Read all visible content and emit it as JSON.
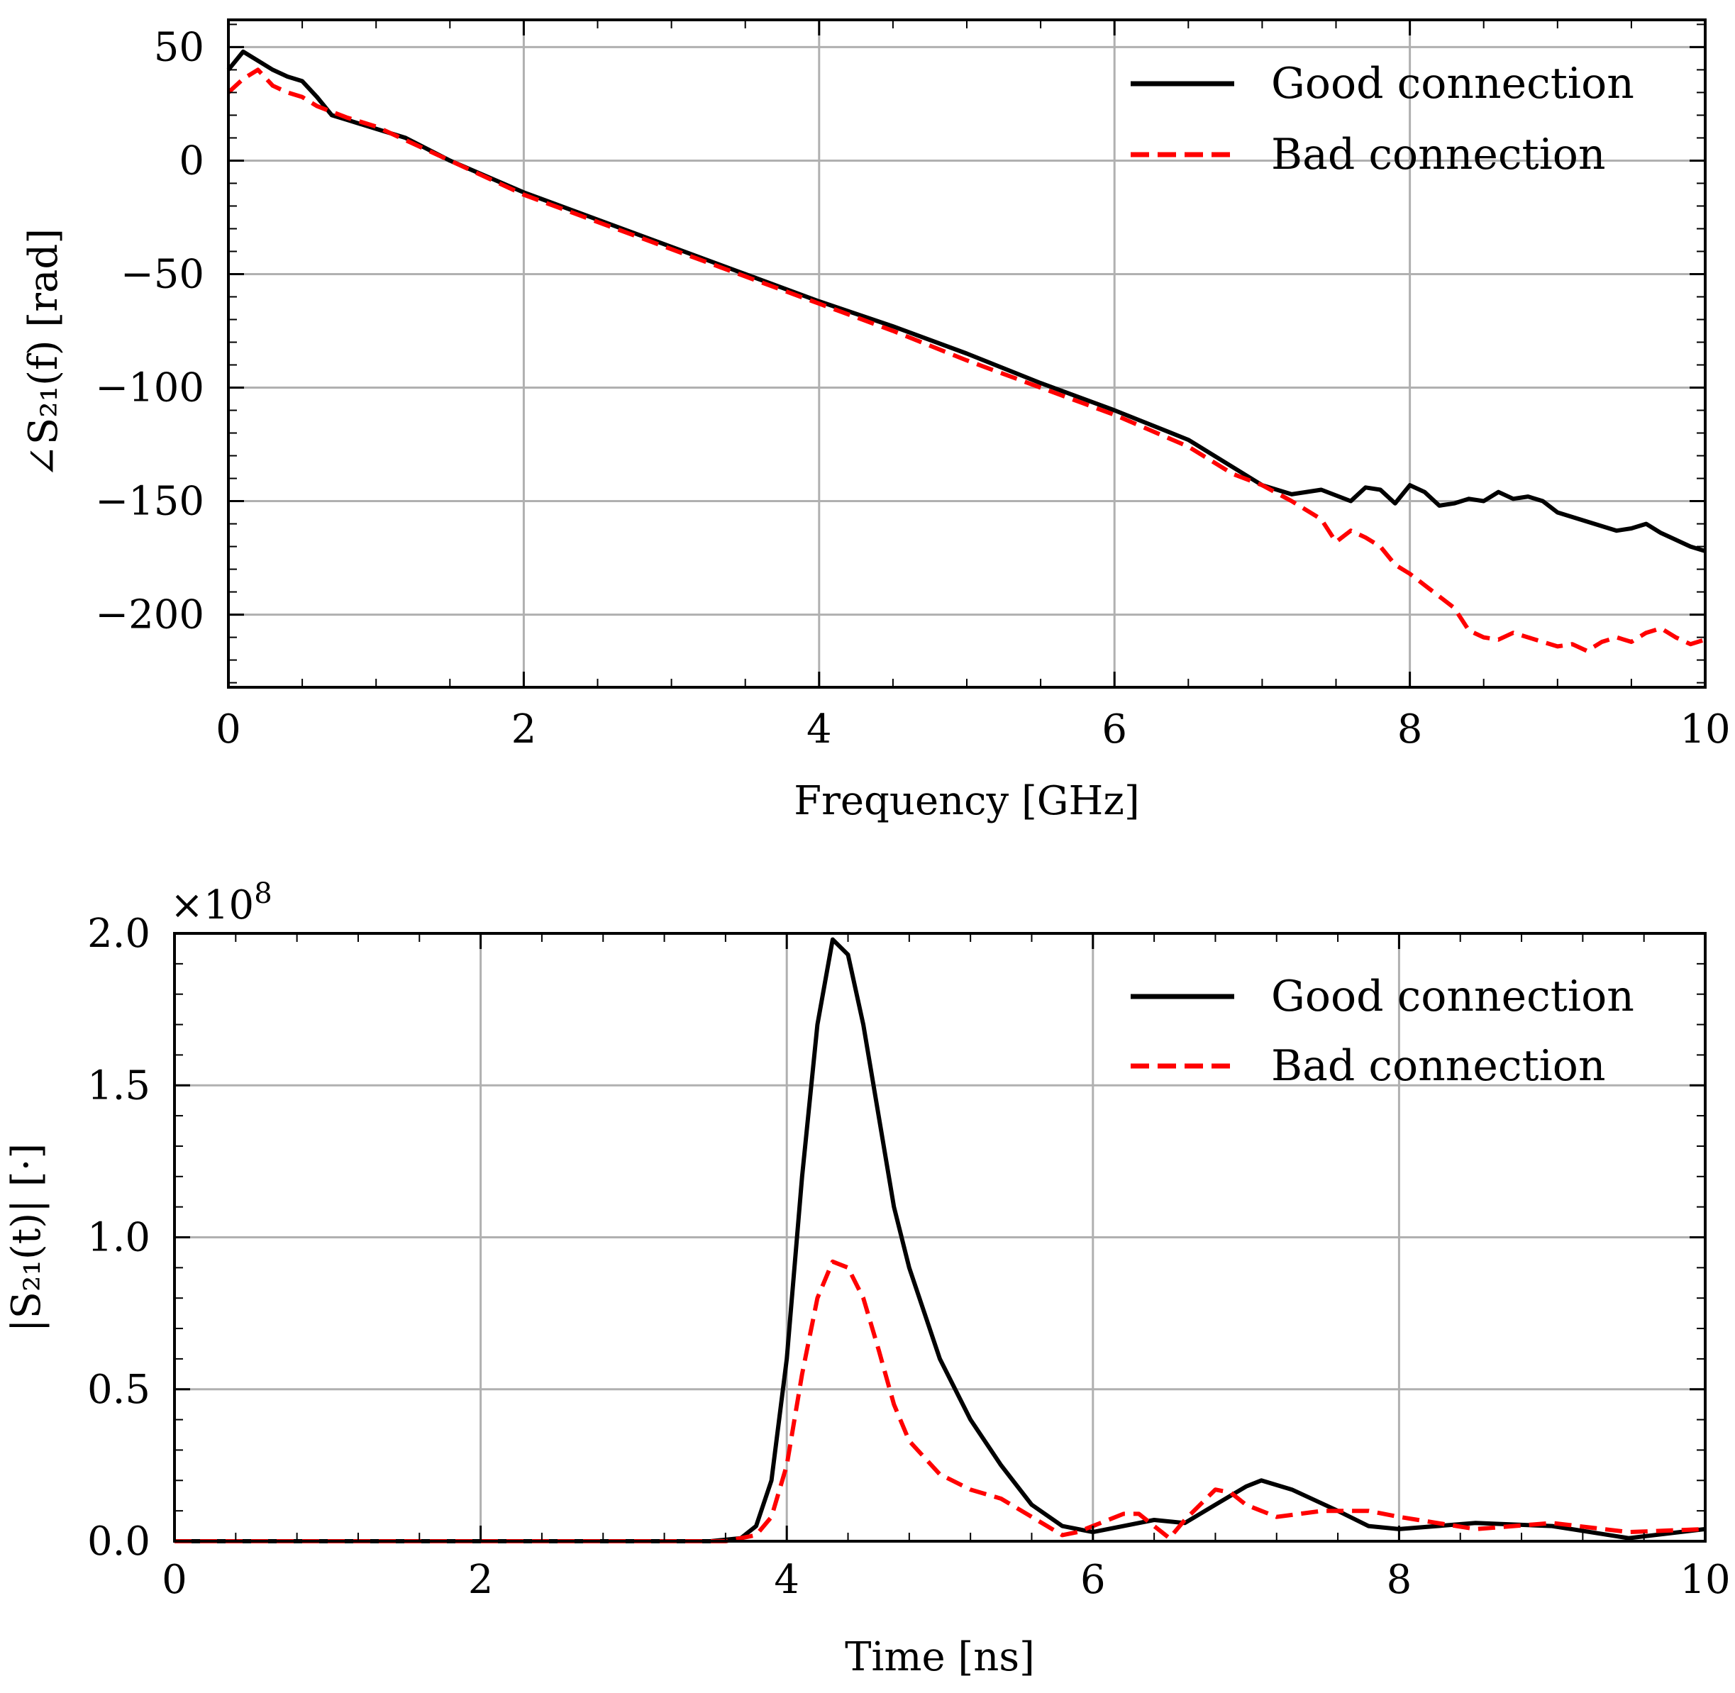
{
  "figure": {
    "colors": {
      "good": "#000000",
      "bad": "#ff0000",
      "grid": "#b0b0b0"
    }
  },
  "chart_data": [
    {
      "id": "phase",
      "type": "line",
      "xlabel": "Frequency [GHz]",
      "ylabel": "∠S₂₁(f) [rad]",
      "xlim": [
        0,
        10
      ],
      "ylim": [
        -232,
        62
      ],
      "xticks": [
        0,
        2,
        4,
        6,
        8,
        10
      ],
      "xtick_labels": [
        "0",
        "2",
        "4",
        "6",
        "8",
        "10"
      ],
      "yticks": [
        50,
        0,
        -50,
        -100,
        -150,
        -200
      ],
      "ytick_labels": [
        "50",
        "0",
        "−50",
        "−100",
        "−150",
        "−200"
      ],
      "grid": true,
      "legend": "top-right",
      "series": [
        {
          "name": "Good connection",
          "color": "#000000",
          "style": "solid",
          "x": [
            0,
            0.1,
            0.2,
            0.3,
            0.4,
            0.5,
            0.6,
            0.7,
            0.8,
            1.0,
            1.2,
            1.5,
            2.0,
            2.5,
            3.0,
            3.5,
            4.0,
            4.5,
            5.0,
            5.5,
            6.0,
            6.5,
            7.0,
            7.2,
            7.4,
            7.6,
            7.7,
            7.8,
            7.9,
            8.0,
            8.1,
            8.2,
            8.3,
            8.4,
            8.5,
            8.6,
            8.7,
            8.8,
            8.9,
            9.0,
            9.2,
            9.4,
            9.5,
            9.6,
            9.7,
            9.8,
            9.9,
            10.0
          ],
          "y": [
            40,
            48,
            44,
            40,
            37,
            35,
            28,
            20,
            18,
            14,
            10,
            0,
            -14,
            -26,
            -38,
            -50,
            -62,
            -73,
            -85,
            -98,
            -110,
            -123,
            -143,
            -147,
            -145,
            -150,
            -144,
            -145,
            -151,
            -143,
            -146,
            -152,
            -151,
            -149,
            -150,
            -146,
            -149,
            -148,
            -150,
            -155,
            -159,
            -163,
            -162,
            -160,
            -164,
            -167,
            -170,
            -172
          ]
        },
        {
          "name": "Bad connection",
          "color": "#ff0000",
          "style": "dashed",
          "x": [
            0,
            0.1,
            0.2,
            0.3,
            0.4,
            0.5,
            0.6,
            0.8,
            1.0,
            1.2,
            1.5,
            2.0,
            2.5,
            3.0,
            3.5,
            4.0,
            4.5,
            5.0,
            5.5,
            6.0,
            6.5,
            6.8,
            7.0,
            7.2,
            7.4,
            7.5,
            7.6,
            7.7,
            7.8,
            7.9,
            8.0,
            8.1,
            8.2,
            8.3,
            8.4,
            8.5,
            8.6,
            8.7,
            8.8,
            8.9,
            9.0,
            9.1,
            9.2,
            9.3,
            9.4,
            9.5,
            9.6,
            9.7,
            9.8,
            9.9,
            10.0
          ],
          "y": [
            30,
            36,
            40,
            33,
            30,
            28,
            24,
            19,
            15,
            9,
            0,
            -15,
            -27,
            -39,
            -51,
            -63,
            -75,
            -88,
            -100,
            -112,
            -126,
            -138,
            -143,
            -150,
            -158,
            -168,
            -163,
            -166,
            -170,
            -178,
            -182,
            -187,
            -192,
            -197,
            -207,
            -210,
            -211,
            -208,
            -210,
            -212,
            -214,
            -213,
            -216,
            -212,
            -210,
            -212,
            -208,
            -206,
            -210,
            -213,
            -211
          ]
        }
      ]
    },
    {
      "id": "magnitude",
      "type": "line",
      "xlabel": "Time [ns]",
      "ylabel": "|S₂₁(t)| [·]",
      "offset_label": "×10",
      "offset_exponent": "8",
      "xlim": [
        0,
        10
      ],
      "ylim": [
        0,
        2.0
      ],
      "xticks": [
        0,
        2,
        4,
        6,
        8,
        10
      ],
      "xtick_labels": [
        "0",
        "2",
        "4",
        "6",
        "8",
        "10"
      ],
      "yticks": [
        0.0,
        0.5,
        1.0,
        1.5,
        2.0
      ],
      "ytick_labels": [
        "0.0",
        "0.5",
        "1.0",
        "1.5",
        "2.0"
      ],
      "grid": true,
      "legend": "top-right",
      "series": [
        {
          "name": "Good connection",
          "color": "#000000",
          "style": "solid",
          "x": [
            0,
            3.5,
            3.7,
            3.8,
            3.9,
            4.0,
            4.1,
            4.2,
            4.3,
            4.4,
            4.5,
            4.6,
            4.7,
            4.8,
            5.0,
            5.2,
            5.4,
            5.6,
            5.8,
            6.0,
            6.2,
            6.4,
            6.6,
            6.8,
            7.0,
            7.1,
            7.3,
            7.6,
            7.8,
            8.0,
            8.5,
            9.0,
            9.5,
            10.0
          ],
          "y": [
            0,
            0,
            0.01,
            0.05,
            0.2,
            0.6,
            1.2,
            1.7,
            1.98,
            1.93,
            1.7,
            1.4,
            1.1,
            0.9,
            0.6,
            0.4,
            0.25,
            0.12,
            0.05,
            0.03,
            0.05,
            0.07,
            0.06,
            0.12,
            0.18,
            0.2,
            0.17,
            0.1,
            0.05,
            0.04,
            0.06,
            0.05,
            0.01,
            0.04
          ]
        },
        {
          "name": "Bad connection",
          "color": "#ff0000",
          "style": "dashed",
          "x": [
            0,
            3.6,
            3.8,
            3.9,
            4.0,
            4.1,
            4.2,
            4.3,
            4.4,
            4.5,
            4.6,
            4.7,
            4.8,
            5.0,
            5.2,
            5.4,
            5.6,
            5.8,
            5.9,
            6.0,
            6.2,
            6.3,
            6.4,
            6.5,
            6.6,
            6.8,
            6.9,
            7.0,
            7.2,
            7.5,
            7.8,
            8.0,
            8.5,
            9.0,
            9.5,
            10.0
          ],
          "y": [
            0,
            0,
            0.02,
            0.08,
            0.25,
            0.55,
            0.8,
            0.92,
            0.9,
            0.8,
            0.63,
            0.45,
            0.33,
            0.22,
            0.17,
            0.14,
            0.08,
            0.02,
            0.03,
            0.05,
            0.09,
            0.09,
            0.05,
            0.01,
            0.07,
            0.17,
            0.16,
            0.12,
            0.08,
            0.1,
            0.1,
            0.08,
            0.04,
            0.06,
            0.03,
            0.04
          ]
        }
      ]
    }
  ]
}
